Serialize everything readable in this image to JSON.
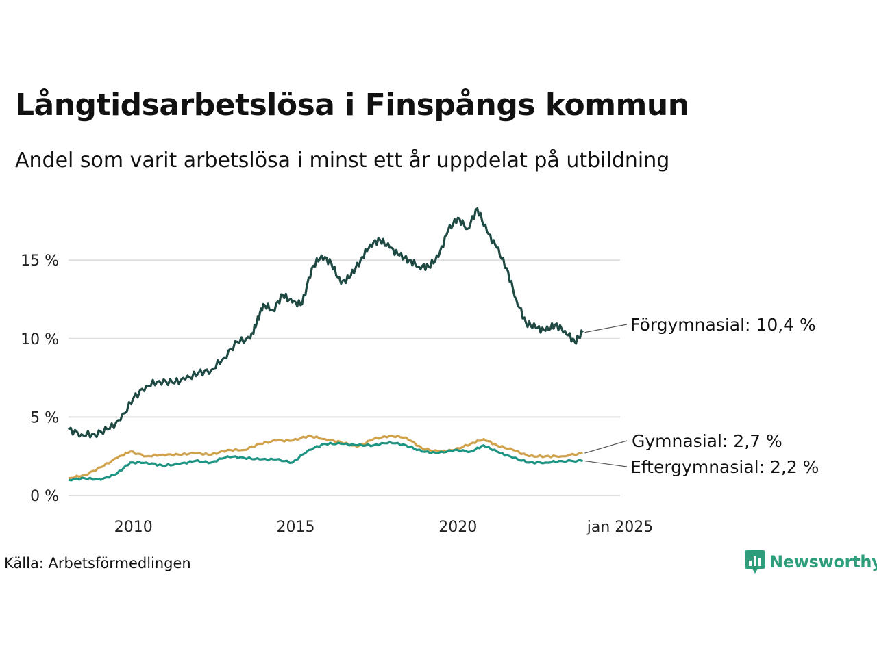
{
  "title": "Långtidsarbetslösa i Finspångs kommun",
  "subtitle": "Andel som varit arbetslösa i minst ett år uppdelat på utbildning",
  "source": "Källa: Arbetsförmedlingen",
  "brand": {
    "name": "Newsworthy",
    "icon": "newsworthy-logo-icon",
    "color": "#2e9d7c"
  },
  "chart_data": {
    "type": "line",
    "title": "Långtidsarbetslösa i Finspångs kommun",
    "xlabel": "",
    "ylabel": "",
    "x_range": [
      2008.0,
      2025.0
    ],
    "ylim": [
      0,
      18.5
    ],
    "y_ticks": [
      {
        "value": 0,
        "label": "0 %"
      },
      {
        "value": 5,
        "label": "5 %"
      },
      {
        "value": 10,
        "label": "10 %"
      },
      {
        "value": 15,
        "label": "15 %"
      }
    ],
    "x_ticks": [
      {
        "value": 2010,
        "label": "2010"
      },
      {
        "value": 2015,
        "label": "2015"
      },
      {
        "value": 2020,
        "label": "2020"
      },
      {
        "value": 2025,
        "label": "jan 2025"
      }
    ],
    "grid": "horizontal",
    "series": [
      {
        "name": "Förgymnasial",
        "end_label": "Förgymnasial: 10,4 %",
        "color": "#1f4a44",
        "points": [
          [
            2008.0,
            4.2
          ],
          [
            2008.4,
            3.9
          ],
          [
            2008.8,
            3.9
          ],
          [
            2009.2,
            4.2
          ],
          [
            2009.6,
            4.8
          ],
          [
            2010.0,
            6.2
          ],
          [
            2010.4,
            7.0
          ],
          [
            2010.8,
            7.3
          ],
          [
            2011.2,
            7.2
          ],
          [
            2011.6,
            7.4
          ],
          [
            2012.0,
            7.8
          ],
          [
            2012.4,
            8.0
          ],
          [
            2012.8,
            8.8
          ],
          [
            2013.2,
            9.8
          ],
          [
            2013.6,
            10.0
          ],
          [
            2013.8,
            11.0
          ],
          [
            2014.0,
            12.2
          ],
          [
            2014.3,
            11.8
          ],
          [
            2014.6,
            12.8
          ],
          [
            2014.9,
            12.3
          ],
          [
            2015.2,
            12.2
          ],
          [
            2015.5,
            14.5
          ],
          [
            2015.8,
            15.3
          ],
          [
            2016.1,
            14.8
          ],
          [
            2016.4,
            13.5
          ],
          [
            2016.7,
            14.0
          ],
          [
            2017.0,
            15.0
          ],
          [
            2017.3,
            16.0
          ],
          [
            2017.6,
            16.3
          ],
          [
            2017.9,
            15.8
          ],
          [
            2018.2,
            15.3
          ],
          [
            2018.5,
            15.0
          ],
          [
            2018.8,
            14.6
          ],
          [
            2019.1,
            14.6
          ],
          [
            2019.4,
            15.2
          ],
          [
            2019.7,
            16.9
          ],
          [
            2020.0,
            17.7
          ],
          [
            2020.3,
            17.0
          ],
          [
            2020.6,
            18.3
          ],
          [
            2020.9,
            16.8
          ],
          [
            2021.2,
            15.8
          ],
          [
            2021.5,
            14.5
          ],
          [
            2021.8,
            12.5
          ],
          [
            2022.1,
            11.0
          ],
          [
            2022.4,
            10.7
          ],
          [
            2022.7,
            10.5
          ],
          [
            2023.0,
            10.9
          ],
          [
            2023.3,
            10.5
          ],
          [
            2023.6,
            9.8
          ],
          [
            2023.85,
            10.4
          ]
        ]
      },
      {
        "name": "Gymnasial",
        "end_label": "Gymnasial:  2,7 %",
        "color": "#d0a24c",
        "points": [
          [
            2008.0,
            1.1
          ],
          [
            2008.5,
            1.3
          ],
          [
            2009.0,
            1.8
          ],
          [
            2009.5,
            2.4
          ],
          [
            2009.9,
            2.8
          ],
          [
            2010.4,
            2.5
          ],
          [
            2010.9,
            2.6
          ],
          [
            2011.4,
            2.6
          ],
          [
            2011.9,
            2.7
          ],
          [
            2012.4,
            2.6
          ],
          [
            2012.9,
            2.9
          ],
          [
            2013.4,
            2.9
          ],
          [
            2013.9,
            3.3
          ],
          [
            2014.4,
            3.5
          ],
          [
            2014.9,
            3.5
          ],
          [
            2015.4,
            3.8
          ],
          [
            2015.9,
            3.6
          ],
          [
            2016.4,
            3.4
          ],
          [
            2016.9,
            3.1
          ],
          [
            2017.4,
            3.6
          ],
          [
            2017.9,
            3.8
          ],
          [
            2018.4,
            3.7
          ],
          [
            2018.9,
            3.0
          ],
          [
            2019.4,
            2.8
          ],
          [
            2019.9,
            2.9
          ],
          [
            2020.4,
            3.3
          ],
          [
            2020.8,
            3.6
          ],
          [
            2021.2,
            3.2
          ],
          [
            2021.7,
            2.9
          ],
          [
            2022.2,
            2.5
          ],
          [
            2022.7,
            2.5
          ],
          [
            2023.2,
            2.5
          ],
          [
            2023.85,
            2.7
          ]
        ]
      },
      {
        "name": "Eftergymnasial",
        "end_label": "Eftergymnasial:  2,2 %",
        "color": "#1e9483",
        "points": [
          [
            2008.0,
            1.0
          ],
          [
            2008.5,
            1.1
          ],
          [
            2009.0,
            1.0
          ],
          [
            2009.5,
            1.4
          ],
          [
            2009.9,
            2.1
          ],
          [
            2010.4,
            2.1
          ],
          [
            2010.9,
            1.9
          ],
          [
            2011.4,
            2.0
          ],
          [
            2011.9,
            2.2
          ],
          [
            2012.4,
            2.1
          ],
          [
            2012.9,
            2.5
          ],
          [
            2013.4,
            2.4
          ],
          [
            2013.9,
            2.3
          ],
          [
            2014.4,
            2.3
          ],
          [
            2014.9,
            2.1
          ],
          [
            2015.4,
            2.9
          ],
          [
            2015.9,
            3.3
          ],
          [
            2016.4,
            3.3
          ],
          [
            2016.9,
            3.2
          ],
          [
            2017.4,
            3.2
          ],
          [
            2017.9,
            3.4
          ],
          [
            2018.4,
            3.2
          ],
          [
            2018.9,
            2.8
          ],
          [
            2019.4,
            2.7
          ],
          [
            2019.9,
            2.9
          ],
          [
            2020.4,
            2.8
          ],
          [
            2020.8,
            3.2
          ],
          [
            2021.2,
            2.8
          ],
          [
            2021.7,
            2.4
          ],
          [
            2022.2,
            2.1
          ],
          [
            2022.7,
            2.1
          ],
          [
            2023.2,
            2.2
          ],
          [
            2023.85,
            2.2
          ]
        ]
      }
    ]
  }
}
